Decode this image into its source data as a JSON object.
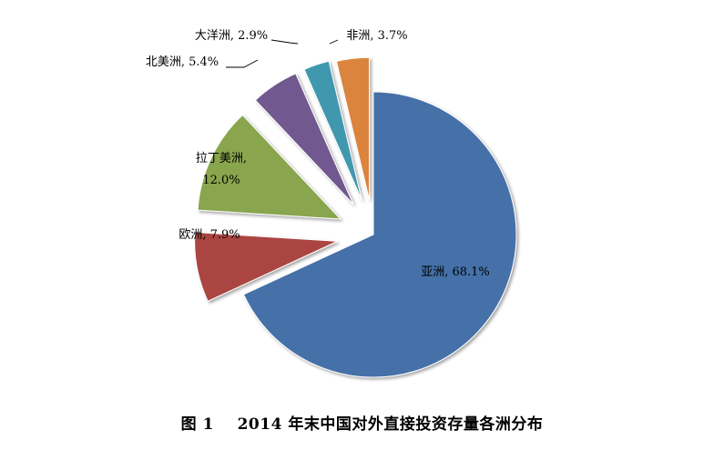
{
  "chart_data": {
    "type": "pie",
    "exploded": true,
    "labels_format": "{label}, {value}%",
    "slices": [
      {
        "label": "亚洲",
        "value": 68.1,
        "value_text": "68.1%",
        "color": "#4570A8"
      },
      {
        "label": "欧洲",
        "value": 7.9,
        "value_text": "7.9%",
        "color": "#AA4542"
      },
      {
        "label": "拉丁美洲",
        "value": 12.0,
        "value_text": "12.0%",
        "color": "#89A54E"
      },
      {
        "label": "北美洲",
        "value": 5.4,
        "value_text": "5.4%",
        "color": "#71588F"
      },
      {
        "label": "大洋洲",
        "value": 2.9,
        "value_text": "2.9%",
        "color": "#4198AF"
      },
      {
        "label": "非洲",
        "value": 3.7,
        "value_text": "3.7%",
        "color": "#DB843D"
      }
    ]
  },
  "caption": {
    "figure_no": "图 1",
    "title": "2014 年末中国对外直接投资存量各洲分布"
  }
}
